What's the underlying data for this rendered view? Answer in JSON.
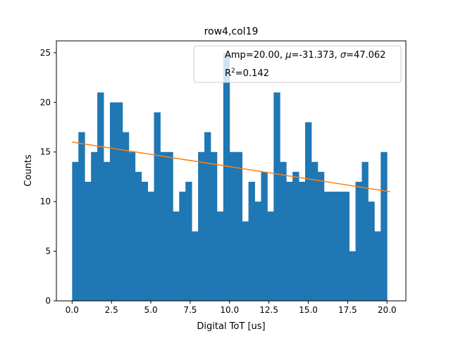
{
  "chart_data": {
    "type": "bar",
    "title": "row4,col19",
    "xlabel": "Digital ToT [us]",
    "ylabel": "Counts",
    "xlim": [
      -1.0,
      21.2
    ],
    "ylim": [
      0,
      26.2
    ],
    "x_ticks": [
      0.0,
      2.5,
      5.0,
      7.5,
      10.0,
      12.5,
      15.0,
      17.5,
      20.0
    ],
    "x_tick_labels": [
      "0.0",
      "2.5",
      "5.0",
      "7.5",
      "10.0",
      "12.5",
      "15.0",
      "17.5",
      "20.0"
    ],
    "y_ticks": [
      0,
      5,
      10,
      15,
      20,
      25
    ],
    "y_tick_labels": [
      "0",
      "5",
      "10",
      "15",
      "20",
      "25"
    ],
    "bin_start": 0.0,
    "bin_width": 0.4,
    "counts": [
      14,
      17,
      12,
      15,
      21,
      14,
      20,
      20,
      17,
      15,
      13,
      12,
      11,
      19,
      15,
      15,
      9,
      11,
      12,
      7,
      15,
      17,
      15,
      9,
      25,
      15,
      15,
      8,
      12,
      10,
      13,
      9,
      21,
      14,
      12,
      13,
      12,
      18,
      14,
      13,
      11,
      11,
      11,
      11,
      5,
      12,
      14,
      10,
      7,
      15
    ],
    "bar_color": "#1f77b4",
    "series": [
      {
        "type": "line",
        "x": [
          0.0,
          20.2
        ],
        "y": [
          16.0,
          11.0
        ],
        "color": "#ff7f0e"
      }
    ],
    "legend": {
      "position": "top-right",
      "amp_text": "Amp=20.00, ",
      "mu_symbol": "μ",
      "mu_text": "=-31.373, ",
      "sigma_symbol": "σ",
      "sigma_text": "=47.062",
      "r_text": "R",
      "r_sup": "2",
      "r_value_text": "=0.142"
    }
  }
}
